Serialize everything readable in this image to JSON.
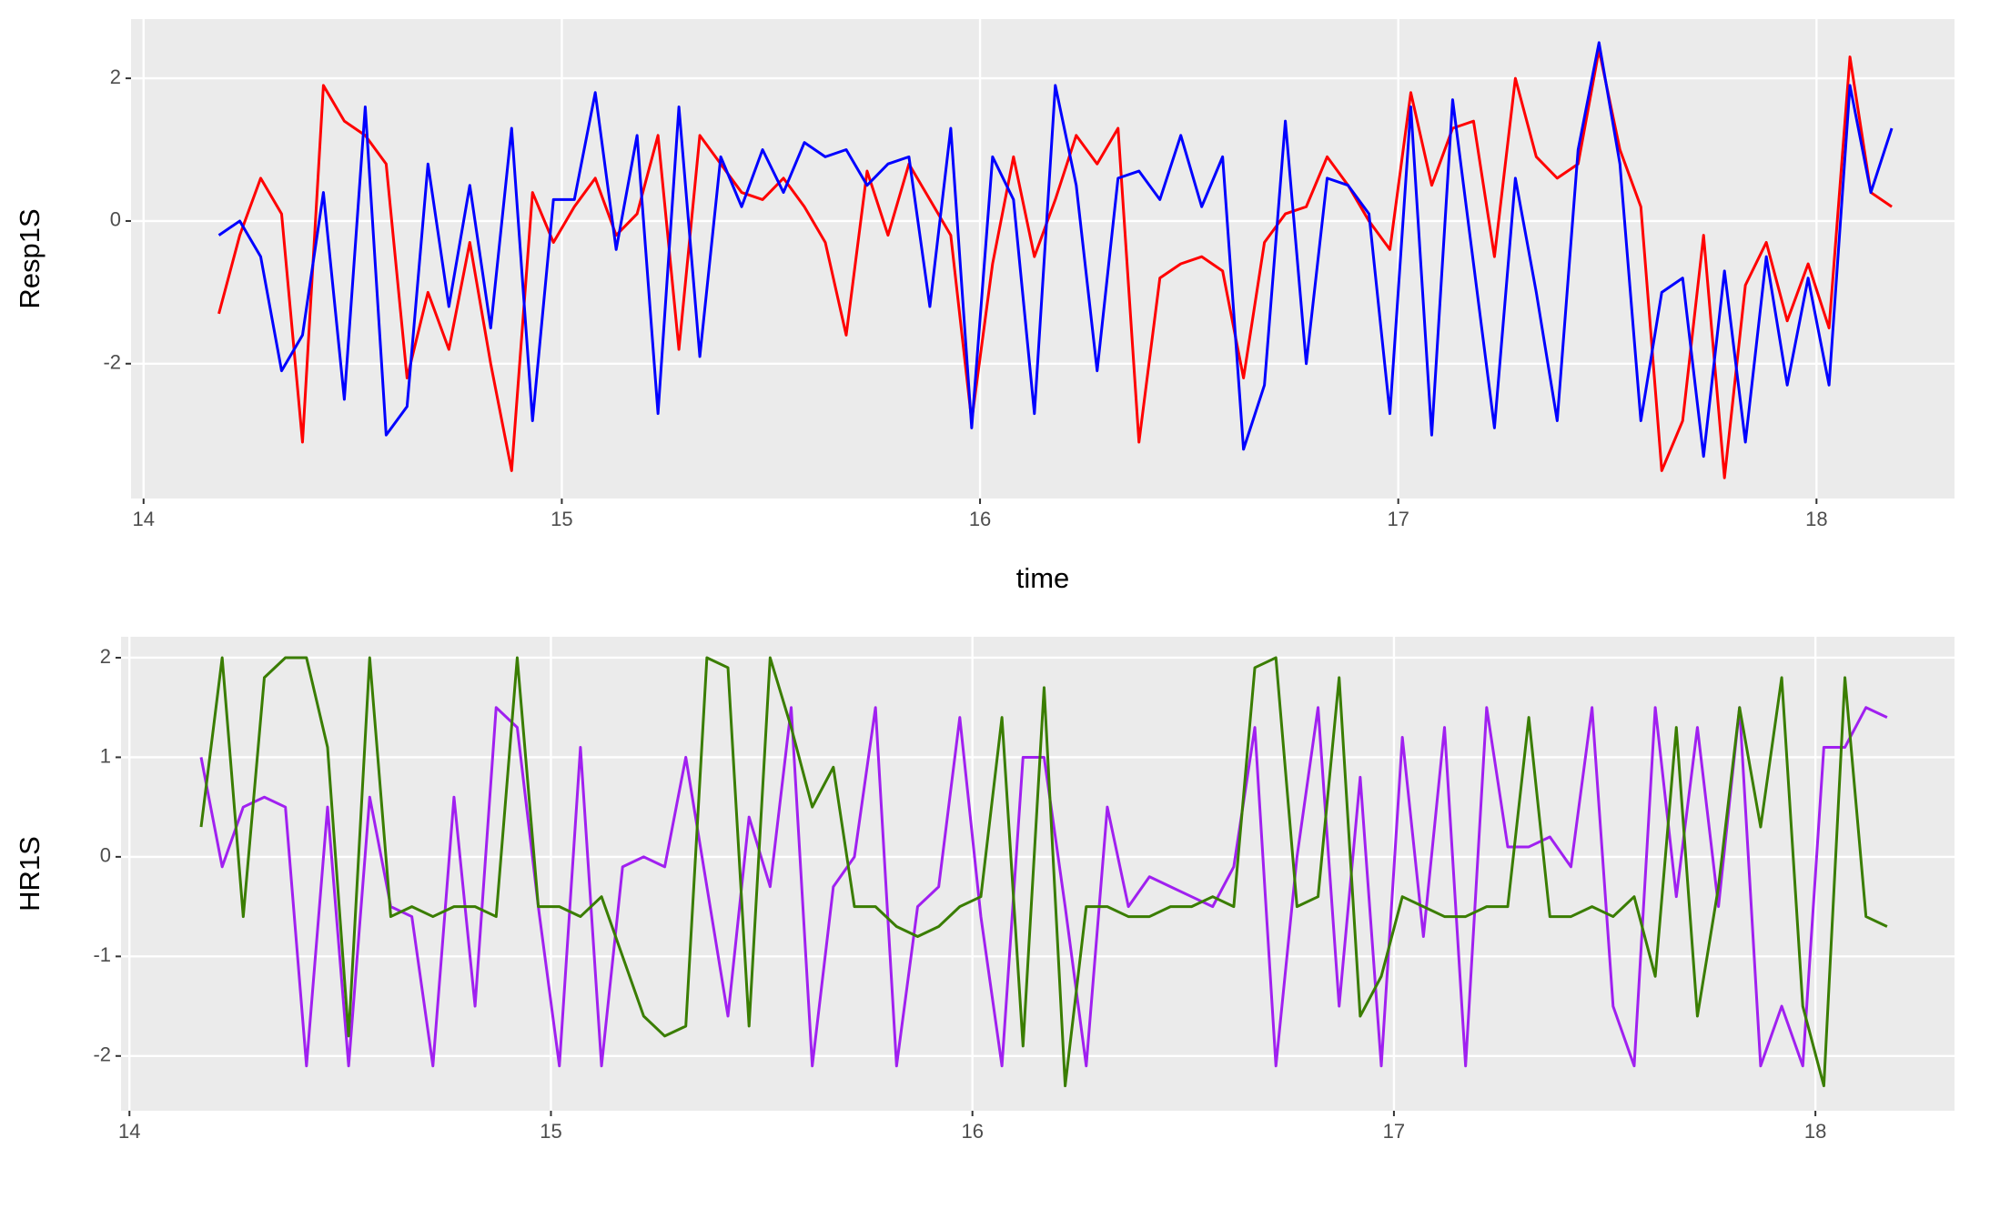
{
  "chart_data": [
    {
      "type": "line",
      "x_label": "time",
      "y_label": "Resp1S",
      "xlim": [
        13.97,
        18.33
      ],
      "xticks": [
        14,
        15,
        16,
        17,
        18
      ],
      "ylim": [
        -3.89,
        2.83
      ],
      "yticks": [
        -2,
        0,
        2
      ],
      "grid": true,
      "x": [
        14.18,
        14.23,
        14.28,
        14.33,
        14.38,
        14.43,
        14.48,
        14.53,
        14.58,
        14.63,
        14.68,
        14.73,
        14.78,
        14.83,
        14.88,
        14.93,
        14.98,
        15.03,
        15.08,
        15.13,
        15.18,
        15.23,
        15.28,
        15.33,
        15.38,
        15.43,
        15.48,
        15.53,
        15.58,
        15.63,
        15.68,
        15.73,
        15.78,
        15.83,
        15.88,
        15.93,
        15.98,
        16.03,
        16.08,
        16.13,
        16.18,
        16.23,
        16.28,
        16.33,
        16.38,
        16.43,
        16.48,
        16.53,
        16.58,
        16.63,
        16.68,
        16.73,
        16.78,
        16.83,
        16.88,
        16.93,
        16.98,
        17.03,
        17.08,
        17.13,
        17.18,
        17.23,
        17.28,
        17.33,
        17.38,
        17.43,
        17.48,
        17.53,
        17.58,
        17.63,
        17.68,
        17.73,
        17.78,
        17.83,
        17.88,
        17.93,
        17.98,
        18.03,
        18.08,
        18.13,
        18.18
      ],
      "series": [
        {
          "color": "#ff0000",
          "values": [
            -1.3,
            -0.2,
            0.6,
            0.1,
            -3.1,
            1.9,
            1.4,
            1.2,
            0.8,
            -2.2,
            -1.0,
            -1.8,
            -0.3,
            -2.0,
            -3.5,
            0.4,
            -0.3,
            0.2,
            0.6,
            -0.2,
            0.1,
            1.2,
            -1.8,
            1.2,
            0.8,
            0.4,
            0.3,
            0.6,
            0.2,
            -0.3,
            -1.6,
            0.7,
            -0.2,
            0.8,
            0.3,
            -0.2,
            -2.8,
            -0.6,
            0.9,
            -0.5,
            0.3,
            1.2,
            0.8,
            1.3,
            -3.1,
            -0.8,
            -0.6,
            -0.5,
            -0.7,
            -2.2,
            -0.3,
            0.1,
            0.2,
            0.9,
            0.5,
            0.0,
            -0.4,
            1.8,
            0.5,
            1.3,
            1.4,
            -0.5,
            2.0,
            0.9,
            0.6,
            0.8,
            2.4,
            1.0,
            0.2,
            -3.5,
            -2.8,
            -0.2,
            -3.6,
            -0.9,
            -0.3,
            -1.4,
            -0.6,
            -1.5,
            2.3,
            0.4,
            0.2
          ]
        },
        {
          "color": "#0000ff",
          "values": [
            -0.2,
            0.0,
            -0.5,
            -2.1,
            -1.6,
            0.4,
            -2.5,
            1.6,
            -3.0,
            -2.6,
            0.8,
            -1.2,
            0.5,
            -1.5,
            1.3,
            -2.8,
            0.3,
            0.3,
            1.8,
            -0.4,
            1.2,
            -2.7,
            1.6,
            -1.9,
            0.9,
            0.2,
            1.0,
            0.4,
            1.1,
            0.9,
            1.0,
            0.5,
            0.8,
            0.9,
            -1.2,
            1.3,
            -2.9,
            0.9,
            0.3,
            -2.7,
            1.9,
            0.5,
            -2.1,
            0.6,
            0.7,
            0.3,
            1.2,
            0.2,
            0.9,
            -3.2,
            -2.3,
            1.4,
            -2.0,
            0.6,
            0.5,
            0.1,
            -2.7,
            1.6,
            -3.0,
            1.7,
            -0.6,
            -2.9,
            0.6,
            -1.0,
            -2.8,
            1.0,
            2.5,
            0.8,
            -2.8,
            -1.0,
            -0.8,
            -3.3,
            -0.7,
            -3.1,
            -0.5,
            -2.3,
            -0.8,
            -2.3,
            1.9,
            0.4,
            1.3
          ]
        }
      ]
    },
    {
      "type": "line",
      "x_label": "time",
      "y_label": "HR1S",
      "xlim": [
        13.98,
        18.33
      ],
      "xticks": [
        14,
        15,
        16,
        17,
        18
      ],
      "ylim": [
        -2.55,
        2.21
      ],
      "yticks": [
        -2,
        -1,
        0,
        1,
        2
      ],
      "grid": true,
      "x": [
        14.17,
        14.22,
        14.27,
        14.32,
        14.37,
        14.42,
        14.47,
        14.52,
        14.57,
        14.62,
        14.67,
        14.72,
        14.77,
        14.82,
        14.87,
        14.92,
        14.97,
        15.02,
        15.07,
        15.12,
        15.17,
        15.22,
        15.27,
        15.32,
        15.37,
        15.42,
        15.47,
        15.52,
        15.57,
        15.62,
        15.67,
        15.72,
        15.77,
        15.82,
        15.87,
        15.92,
        15.97,
        16.02,
        16.07,
        16.12,
        16.17,
        16.22,
        16.27,
        16.32,
        16.37,
        16.42,
        16.47,
        16.52,
        16.57,
        16.62,
        16.67,
        16.72,
        16.77,
        16.82,
        16.87,
        16.92,
        16.97,
        17.02,
        17.07,
        17.12,
        17.17,
        17.22,
        17.27,
        17.32,
        17.37,
        17.42,
        17.47,
        17.52,
        17.57,
        17.62,
        17.67,
        17.72,
        17.77,
        17.82,
        17.87,
        17.92,
        17.97,
        18.02,
        18.07,
        18.12,
        18.17
      ],
      "series": [
        {
          "color": "#a020f0",
          "values": [
            1.0,
            -0.1,
            0.5,
            0.6,
            0.5,
            -2.1,
            0.5,
            -2.1,
            0.6,
            -0.5,
            -0.6,
            -2.1,
            0.6,
            -1.5,
            1.5,
            1.3,
            -0.5,
            -2.1,
            1.1,
            -2.1,
            -0.1,
            0.0,
            -0.1,
            1.0,
            -0.3,
            -1.6,
            0.4,
            -0.3,
            1.5,
            -2.1,
            -0.3,
            0.0,
            1.5,
            -2.1,
            -0.5,
            -0.3,
            1.4,
            -0.6,
            -2.1,
            1.0,
            1.0,
            -0.5,
            -2.1,
            0.5,
            -0.5,
            -0.2,
            -0.3,
            -0.4,
            -0.5,
            -0.1,
            1.3,
            -2.1,
            0.0,
            1.5,
            -1.5,
            0.8,
            -2.1,
            1.2,
            -0.8,
            1.3,
            -2.1,
            1.5,
            0.1,
            0.1,
            0.2,
            -0.1,
            1.5,
            -1.5,
            -2.1,
            1.5,
            -0.4,
            1.3,
            -0.5,
            1.5,
            -2.1,
            -1.5,
            -2.1,
            1.1,
            1.1,
            1.5,
            1.4
          ]
        },
        {
          "color": "#3a7d00",
          "values": [
            0.3,
            2.0,
            -0.6,
            1.8,
            2.0,
            2.0,
            1.1,
            -1.8,
            2.0,
            -0.6,
            -0.5,
            -0.6,
            -0.5,
            -0.5,
            -0.6,
            2.0,
            -0.5,
            -0.5,
            -0.6,
            -0.4,
            -1.0,
            -1.6,
            -1.8,
            -1.7,
            2.0,
            1.9,
            -1.7,
            2.0,
            1.3,
            0.5,
            0.9,
            -0.5,
            -0.5,
            -0.7,
            -0.8,
            -0.7,
            -0.5,
            -0.4,
            1.4,
            -1.9,
            1.7,
            -2.3,
            -0.5,
            -0.5,
            -0.6,
            -0.6,
            -0.5,
            -0.5,
            -0.4,
            -0.5,
            1.9,
            2.0,
            -0.5,
            -0.4,
            1.8,
            -1.6,
            -1.2,
            -0.4,
            -0.5,
            -0.6,
            -0.6,
            -0.5,
            -0.5,
            1.4,
            -0.6,
            -0.6,
            -0.5,
            -0.6,
            -0.4,
            -1.2,
            1.3,
            -1.6,
            -0.3,
            1.5,
            0.3,
            1.8,
            -1.5,
            -2.3,
            1.8,
            -0.6,
            -0.7
          ]
        }
      ]
    }
  ]
}
